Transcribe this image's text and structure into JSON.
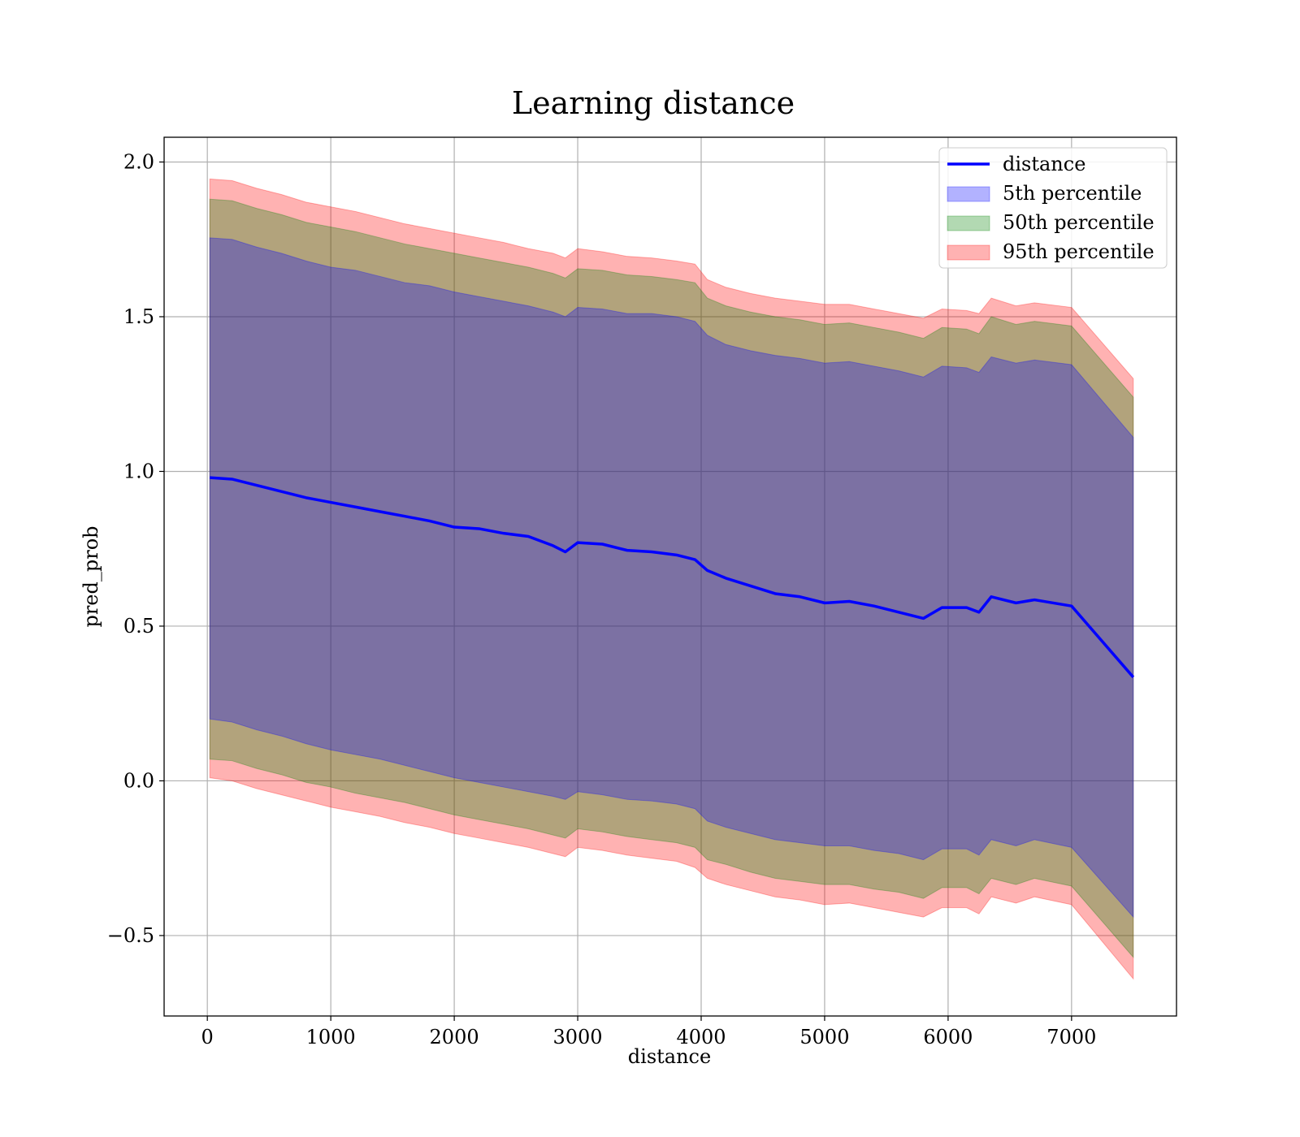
{
  "chart_data": {
    "type": "line",
    "title": "Learning distance",
    "xlabel": "distance",
    "ylabel": "pred_prob",
    "xlim": [
      -350,
      7850
    ],
    "ylim": [
      -0.76,
      2.08
    ],
    "xticks": [
      0,
      1000,
      2000,
      3000,
      4000,
      5000,
      6000,
      7000
    ],
    "xtick_labels": [
      "0",
      "1000",
      "2000",
      "3000",
      "4000",
      "5000",
      "6000",
      "7000"
    ],
    "yticks": [
      -0.5,
      0.0,
      0.5,
      1.0,
      1.5,
      2.0
    ],
    "ytick_labels": [
      "−0.5",
      "0.0",
      "0.5",
      "1.0",
      "1.5",
      "2.0"
    ],
    "grid": true,
    "legend_position": "top-right",
    "x": [
      20,
      200,
      400,
      600,
      800,
      1000,
      1200,
      1400,
      1600,
      1800,
      2000,
      2200,
      2400,
      2600,
      2800,
      2900,
      3000,
      3200,
      3400,
      3600,
      3800,
      3950,
      4050,
      4200,
      4400,
      4600,
      4800,
      5000,
      5200,
      5400,
      5600,
      5800,
      5950,
      6150,
      6250,
      6350,
      6550,
      6700,
      7000,
      7500
    ],
    "series": [
      {
        "name": "distance",
        "type": "line",
        "color": "#0000ff",
        "values": [
          0.98,
          0.975,
          0.955,
          0.935,
          0.915,
          0.9,
          0.885,
          0.87,
          0.855,
          0.84,
          0.82,
          0.815,
          0.8,
          0.79,
          0.76,
          0.74,
          0.77,
          0.765,
          0.745,
          0.74,
          0.73,
          0.715,
          0.68,
          0.655,
          0.63,
          0.605,
          0.595,
          0.575,
          0.58,
          0.565,
          0.545,
          0.525,
          0.56,
          0.56,
          0.545,
          0.595,
          0.575,
          0.585,
          0.565,
          0.335
        ]
      },
      {
        "name": "5th percentile",
        "type": "band",
        "color": "#0000ff",
        "lower": [
          0.2,
          0.19,
          0.165,
          0.145,
          0.12,
          0.1,
          0.085,
          0.07,
          0.05,
          0.03,
          0.01,
          -0.005,
          -0.02,
          -0.035,
          -0.05,
          -0.06,
          -0.035,
          -0.045,
          -0.06,
          -0.065,
          -0.075,
          -0.09,
          -0.13,
          -0.15,
          -0.17,
          -0.19,
          -0.2,
          -0.21,
          -0.21,
          -0.225,
          -0.235,
          -0.255,
          -0.22,
          -0.22,
          -0.24,
          -0.19,
          -0.21,
          -0.19,
          -0.215,
          -0.44
        ],
        "upper": [
          1.755,
          1.75,
          1.725,
          1.705,
          1.68,
          1.66,
          1.65,
          1.63,
          1.61,
          1.6,
          1.58,
          1.565,
          1.55,
          1.535,
          1.515,
          1.5,
          1.53,
          1.525,
          1.51,
          1.51,
          1.5,
          1.485,
          1.44,
          1.41,
          1.39,
          1.375,
          1.365,
          1.35,
          1.355,
          1.34,
          1.325,
          1.305,
          1.34,
          1.335,
          1.32,
          1.37,
          1.35,
          1.36,
          1.345,
          1.11
        ]
      },
      {
        "name": "50th percentile",
        "type": "band",
        "color": "#008000",
        "lower": [
          0.07,
          0.065,
          0.04,
          0.02,
          -0.005,
          -0.02,
          -0.04,
          -0.055,
          -0.07,
          -0.09,
          -0.11,
          -0.125,
          -0.14,
          -0.155,
          -0.175,
          -0.185,
          -0.155,
          -0.165,
          -0.18,
          -0.19,
          -0.2,
          -0.215,
          -0.255,
          -0.27,
          -0.295,
          -0.315,
          -0.325,
          -0.335,
          -0.335,
          -0.35,
          -0.36,
          -0.38,
          -0.345,
          -0.345,
          -0.365,
          -0.315,
          -0.335,
          -0.315,
          -0.34,
          -0.57
        ],
        "upper": [
          1.88,
          1.875,
          1.85,
          1.83,
          1.805,
          1.79,
          1.775,
          1.755,
          1.735,
          1.72,
          1.705,
          1.69,
          1.675,
          1.66,
          1.64,
          1.625,
          1.655,
          1.65,
          1.635,
          1.63,
          1.62,
          1.61,
          1.56,
          1.535,
          1.515,
          1.5,
          1.49,
          1.475,
          1.48,
          1.465,
          1.45,
          1.43,
          1.465,
          1.46,
          1.445,
          1.5,
          1.475,
          1.485,
          1.47,
          1.24
        ]
      },
      {
        "name": "95th percentile",
        "type": "band",
        "color": "#ff0000",
        "lower": [
          0.01,
          0.0,
          -0.025,
          -0.045,
          -0.065,
          -0.085,
          -0.1,
          -0.115,
          -0.135,
          -0.15,
          -0.17,
          -0.185,
          -0.2,
          -0.215,
          -0.235,
          -0.245,
          -0.215,
          -0.225,
          -0.24,
          -0.25,
          -0.26,
          -0.28,
          -0.315,
          -0.335,
          -0.355,
          -0.375,
          -0.385,
          -0.4,
          -0.395,
          -0.41,
          -0.425,
          -0.44,
          -0.41,
          -0.41,
          -0.43,
          -0.375,
          -0.395,
          -0.375,
          -0.4,
          -0.64
        ],
        "upper": [
          1.945,
          1.94,
          1.915,
          1.895,
          1.87,
          1.855,
          1.84,
          1.82,
          1.8,
          1.785,
          1.77,
          1.755,
          1.74,
          1.72,
          1.705,
          1.69,
          1.72,
          1.71,
          1.695,
          1.69,
          1.68,
          1.67,
          1.62,
          1.595,
          1.575,
          1.56,
          1.55,
          1.54,
          1.54,
          1.525,
          1.51,
          1.495,
          1.525,
          1.52,
          1.51,
          1.56,
          1.535,
          1.545,
          1.53,
          1.3
        ]
      }
    ]
  }
}
